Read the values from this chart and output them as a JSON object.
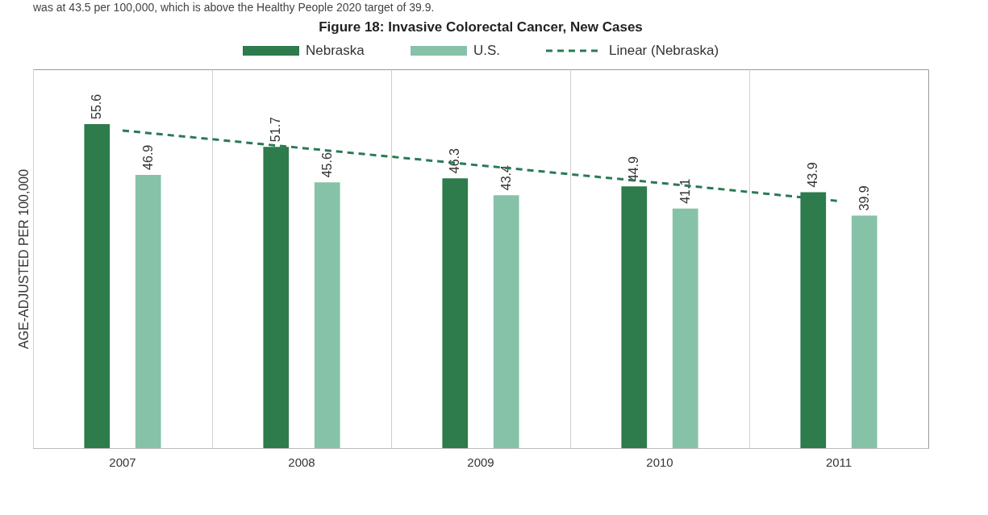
{
  "chart_data": {
    "type": "bar",
    "title": "Figure 18: Invasive Colorectal Cancer, New Cases",
    "ylabel": "AGE-ADJUSTED PER 100,000",
    "annotations": [
      "was at 43.5 per 100,000, which is above the Healthy People 2020 target of 39.9."
    ],
    "categories": [
      "2007",
      "2008",
      "2009",
      "2010",
      "2011"
    ],
    "series": [
      {
        "name": "Nebraska",
        "color": "#2e7b4c",
        "values": [
          55.6,
          51.7,
          46.3,
          44.9,
          43.9
        ],
        "value_labels": [
          "55.6",
          "51.7",
          "46.3",
          "44.9",
          "43.9"
        ]
      },
      {
        "name": "U.S.",
        "color": "#86c2a8",
        "values": [
          46.9,
          45.6,
          43.4,
          41.1,
          39.9
        ],
        "value_labels": [
          "46.9",
          "45.6",
          "43.4",
          "41.1",
          "39.9"
        ]
      },
      {
        "name": "Linear (Nebraska)",
        "type": "line",
        "color": "#2a7a55",
        "line_style": "dashed",
        "values": [
          54.5,
          51.5,
          48.5,
          45.5,
          42.4
        ]
      }
    ],
    "ylim": [
      0,
      65
    ],
    "grid": "x",
    "legend": "top",
    "tick_labels": "x"
  }
}
